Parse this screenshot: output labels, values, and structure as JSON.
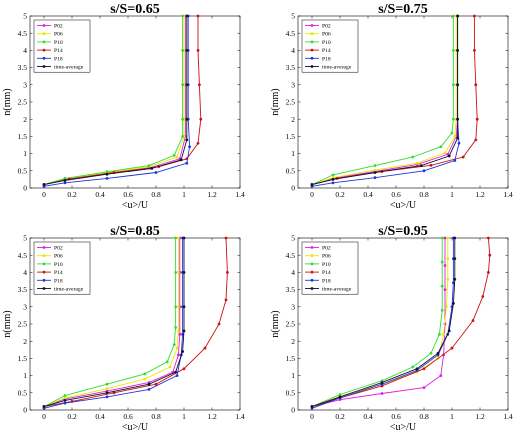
{
  "chart_data": [
    {
      "type": "line",
      "title": "s/S=0.65",
      "xlabel": "<u>/U",
      "ylabel": "n(mm)",
      "xlim": [
        -0.1,
        1.4
      ],
      "ylim": [
        0,
        5
      ],
      "xticks": [
        "0",
        "0.2",
        "0.4",
        "0.6",
        "0.8",
        "1",
        "1.2",
        "1.4"
      ],
      "yticks": [
        "0",
        "0.5",
        "1",
        "1.5",
        "2",
        "2.5",
        "3",
        "3.5",
        "4",
        "4.5",
        "5"
      ],
      "legend_position": "top-left",
      "series": [
        {
          "name": "P02",
          "color": "#e01fe0",
          "x": [
            0.0,
            0.15,
            0.45,
            0.75,
            0.97,
            1.01,
            1.01,
            1.01,
            1.01,
            1.01
          ],
          "y": [
            0.1,
            0.25,
            0.42,
            0.58,
            0.85,
            1.5,
            2.0,
            3.0,
            4.0,
            5.0
          ]
        },
        {
          "name": "P06",
          "color": "#e8e800",
          "x": [
            0.0,
            0.15,
            0.45,
            0.75,
            0.95,
            1.0,
            1.0,
            1.0,
            1.0,
            1.0
          ],
          "y": [
            0.1,
            0.27,
            0.45,
            0.62,
            0.9,
            1.5,
            2.0,
            3.0,
            4.0,
            5.0
          ]
        },
        {
          "name": "P10",
          "color": "#33dd33",
          "x": [
            0.0,
            0.15,
            0.45,
            0.75,
            0.93,
            0.99,
            0.99,
            0.99,
            0.99,
            0.99
          ],
          "y": [
            0.1,
            0.28,
            0.47,
            0.65,
            0.95,
            1.5,
            2.0,
            3.0,
            4.0,
            5.0
          ]
        },
        {
          "name": "P14",
          "color": "#cc1111",
          "x": [
            0.0,
            0.18,
            0.5,
            0.82,
            1.02,
            1.1,
            1.12,
            1.11,
            1.1,
            1.1
          ],
          "y": [
            0.1,
            0.26,
            0.45,
            0.62,
            0.85,
            1.3,
            2.0,
            3.0,
            4.0,
            5.0
          ]
        },
        {
          "name": "P18",
          "color": "#2233dd",
          "x": [
            0.0,
            0.15,
            0.45,
            0.8,
            1.02,
            1.04,
            1.03,
            1.03,
            1.03,
            1.03
          ],
          "y": [
            0.05,
            0.15,
            0.28,
            0.45,
            0.72,
            1.2,
            2.0,
            3.0,
            4.0,
            5.0
          ]
        },
        {
          "name": "time-average",
          "color": "#111133",
          "x": [
            0.0,
            0.15,
            0.45,
            0.77,
            0.98,
            1.02,
            1.02,
            1.02,
            1.02,
            1.02
          ],
          "y": [
            0.1,
            0.22,
            0.4,
            0.57,
            0.82,
            1.4,
            2.0,
            3.0,
            4.0,
            5.0
          ]
        }
      ]
    },
    {
      "type": "line",
      "title": "s/S=0.75",
      "xlabel": "<u>/U",
      "ylabel": "n(mm)",
      "xlim": [
        -0.1,
        1.4
      ],
      "ylim": [
        0,
        5
      ],
      "xticks": [
        "0",
        "0.2",
        "0.4",
        "0.6",
        "0.8",
        "1",
        "1.2",
        "1.4"
      ],
      "yticks": [
        "0",
        "0.5",
        "1",
        "1.5",
        "2",
        "2.5",
        "3",
        "3.5",
        "4",
        "4.5",
        "5"
      ],
      "legend_position": "top-left",
      "series": [
        {
          "name": "P02",
          "color": "#e01fe0",
          "x": [
            0.0,
            0.15,
            0.45,
            0.75,
            0.97,
            1.03,
            1.04,
            1.04,
            1.04,
            1.04
          ],
          "y": [
            0.1,
            0.28,
            0.48,
            0.68,
            0.98,
            1.5,
            2.0,
            3.0,
            4.0,
            5.0
          ]
        },
        {
          "name": "P06",
          "color": "#e8e800",
          "x": [
            0.0,
            0.15,
            0.45,
            0.75,
            0.95,
            1.02,
            1.03,
            1.03,
            1.03,
            1.03
          ],
          "y": [
            0.1,
            0.3,
            0.52,
            0.72,
            1.02,
            1.5,
            2.0,
            3.0,
            4.0,
            5.0
          ]
        },
        {
          "name": "P10",
          "color": "#33dd33",
          "x": [
            0.0,
            0.15,
            0.45,
            0.72,
            0.92,
            1.0,
            1.01,
            1.01,
            1.01,
            1.01
          ],
          "y": [
            0.1,
            0.38,
            0.65,
            0.9,
            1.2,
            1.6,
            2.0,
            3.0,
            4.0,
            5.0
          ]
        },
        {
          "name": "P14",
          "color": "#cc1111",
          "x": [
            0.0,
            0.18,
            0.5,
            0.85,
            1.08,
            1.17,
            1.18,
            1.17,
            1.16,
            1.16
          ],
          "y": [
            0.1,
            0.28,
            0.48,
            0.66,
            0.9,
            1.4,
            2.0,
            3.0,
            4.0,
            5.0
          ]
        },
        {
          "name": "P18",
          "color": "#2233dd",
          "x": [
            0.0,
            0.15,
            0.45,
            0.8,
            1.02,
            1.05,
            1.04,
            1.04,
            1.04,
            1.04
          ],
          "y": [
            0.05,
            0.15,
            0.3,
            0.5,
            0.8,
            1.3,
            2.0,
            3.0,
            4.0,
            5.0
          ]
        },
        {
          "name": "time-average",
          "color": "#111133",
          "x": [
            0.0,
            0.15,
            0.45,
            0.78,
            0.98,
            1.04,
            1.04,
            1.04,
            1.04,
            1.04
          ],
          "y": [
            0.1,
            0.25,
            0.45,
            0.65,
            0.93,
            1.45,
            2.0,
            3.0,
            4.0,
            5.0
          ]
        }
      ]
    },
    {
      "type": "line",
      "title": "s/S=0.85",
      "xlabel": "<u>/U",
      "ylabel": "n(mm)",
      "xlim": [
        -0.1,
        1.4
      ],
      "ylim": [
        0,
        5
      ],
      "xticks": [
        "0",
        "0.2",
        "0.4",
        "0.6",
        "0.8",
        "1",
        "1.2",
        "1.4"
      ],
      "yticks": [
        "0",
        "0.5",
        "1",
        "1.5",
        "2",
        "2.5",
        "3",
        "3.5",
        "4",
        "4.5",
        "5"
      ],
      "legend_position": "top-left",
      "series": [
        {
          "name": "P02",
          "color": "#e01fe0",
          "x": [
            0.0,
            0.15,
            0.45,
            0.75,
            0.92,
            0.96,
            0.97,
            0.97,
            0.97,
            0.97
          ],
          "y": [
            0.1,
            0.32,
            0.55,
            0.8,
            1.1,
            1.6,
            2.2,
            3.0,
            4.0,
            5.0
          ]
        },
        {
          "name": "P06",
          "color": "#e8e800",
          "x": [
            0.0,
            0.15,
            0.45,
            0.72,
            0.9,
            0.95,
            0.96,
            0.96,
            0.96,
            0.96
          ],
          "y": [
            0.1,
            0.35,
            0.62,
            0.9,
            1.25,
            1.8,
            2.3,
            3.0,
            4.0,
            5.0
          ]
        },
        {
          "name": "P10",
          "color": "#33dd33",
          "x": [
            0.0,
            0.15,
            0.45,
            0.72,
            0.88,
            0.93,
            0.94,
            0.94,
            0.94,
            0.94
          ],
          "y": [
            0.1,
            0.42,
            0.75,
            1.05,
            1.4,
            1.9,
            2.4,
            3.0,
            4.0,
            5.0
          ]
        },
        {
          "name": "P14",
          "color": "#cc1111",
          "x": [
            0.0,
            0.2,
            0.5,
            0.8,
            1.0,
            1.15,
            1.25,
            1.3,
            1.31,
            1.3
          ],
          "y": [
            0.1,
            0.25,
            0.5,
            0.75,
            1.2,
            1.8,
            2.5,
            3.2,
            4.0,
            5.0
          ]
        },
        {
          "name": "P18",
          "color": "#2233dd",
          "x": [
            0.0,
            0.15,
            0.45,
            0.75,
            0.95,
            0.98,
            0.99,
            0.99,
            0.99,
            0.99
          ],
          "y": [
            0.05,
            0.2,
            0.38,
            0.6,
            1.0,
            1.6,
            2.2,
            3.0,
            4.0,
            5.0
          ]
        },
        {
          "name": "time-average",
          "color": "#111133",
          "x": [
            0.0,
            0.15,
            0.45,
            0.75,
            0.94,
            0.99,
            1.0,
            1.0,
            1.0,
            1.0
          ],
          "y": [
            0.1,
            0.28,
            0.5,
            0.75,
            1.1,
            1.7,
            2.3,
            3.0,
            4.0,
            5.0
          ]
        }
      ]
    },
    {
      "type": "line",
      "title": "s/S=0.95",
      "xlabel": "<u>/U",
      "ylabel": "n(mm)",
      "xlim": [
        -0.1,
        1.4
      ],
      "ylim": [
        0,
        5
      ],
      "xticks": [
        "0",
        "0.2",
        "0.4",
        "0.6",
        "0.8",
        "1",
        "1.2",
        "1.4"
      ],
      "yticks": [
        "0",
        "0.5",
        "1",
        "1.5",
        "2",
        "2.5",
        "3",
        "3.5",
        "4",
        "4.5",
        "5"
      ],
      "legend_position": "top-left",
      "series": [
        {
          "name": "P02",
          "color": "#e01fe0",
          "x": [
            0.0,
            0.2,
            0.5,
            0.8,
            0.92,
            0.94,
            0.95,
            0.95,
            0.95,
            0.95
          ],
          "y": [
            0.1,
            0.3,
            0.48,
            0.65,
            1.0,
            1.6,
            2.5,
            3.5,
            4.2,
            5.0
          ]
        },
        {
          "name": "P06",
          "color": "#e8e800",
          "x": [
            0.0,
            0.2,
            0.5,
            0.75,
            0.9,
            0.94,
            0.96,
            0.97,
            0.97,
            0.97
          ],
          "y": [
            0.1,
            0.4,
            0.75,
            1.1,
            1.5,
            2.2,
            3.0,
            3.8,
            4.4,
            5.0
          ]
        },
        {
          "name": "P10",
          "color": "#33dd33",
          "x": [
            0.0,
            0.2,
            0.5,
            0.72,
            0.85,
            0.91,
            0.93,
            0.93,
            0.93,
            0.93
          ],
          "y": [
            0.1,
            0.45,
            0.85,
            1.25,
            1.65,
            2.2,
            2.9,
            3.6,
            4.3,
            5.0
          ]
        },
        {
          "name": "P14",
          "color": "#cc1111",
          "x": [
            0.0,
            0.2,
            0.5,
            0.8,
            1.0,
            1.15,
            1.22,
            1.26,
            1.27,
            1.26
          ],
          "y": [
            0.1,
            0.35,
            0.7,
            1.2,
            1.8,
            2.6,
            3.3,
            4.0,
            4.5,
            5.0
          ]
        },
        {
          "name": "P18",
          "color": "#2233dd",
          "x": [
            0.0,
            0.2,
            0.5,
            0.75,
            0.9,
            0.97,
            1.0,
            1.01,
            1.01,
            1.01
          ],
          "y": [
            0.05,
            0.35,
            0.75,
            1.15,
            1.6,
            2.2,
            3.0,
            3.7,
            4.4,
            5.0
          ]
        },
        {
          "name": "time-average",
          "color": "#111133",
          "x": [
            0.0,
            0.2,
            0.5,
            0.75,
            0.9,
            0.98,
            1.01,
            1.02,
            1.02,
            1.02
          ],
          "y": [
            0.1,
            0.38,
            0.8,
            1.2,
            1.65,
            2.3,
            3.1,
            3.8,
            4.4,
            5.0
          ]
        }
      ]
    }
  ]
}
